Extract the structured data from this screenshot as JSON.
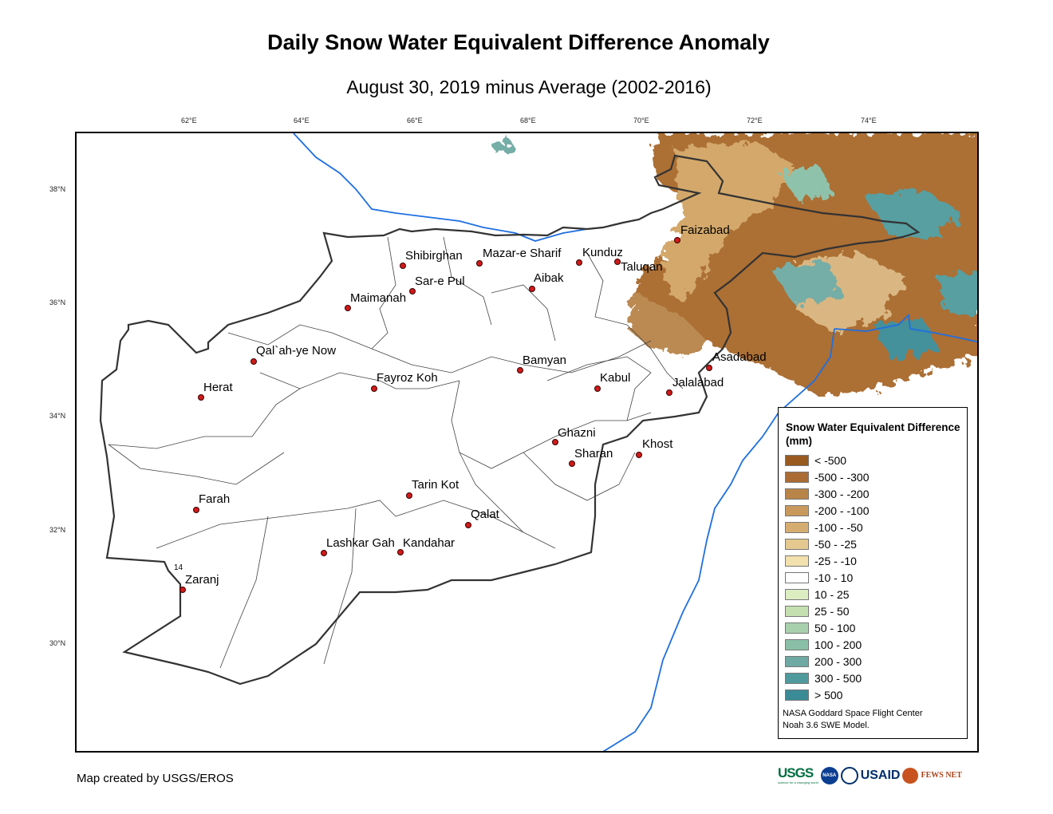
{
  "title": "Daily Snow Water Equivalent Difference Anomaly",
  "subtitle": "August 30, 2019 minus Average (2002-2016)",
  "axes": {
    "longitude_ticks": [
      "62°E",
      "64°E",
      "66°E",
      "68°E",
      "70°E",
      "72°E",
      "74°E"
    ],
    "latitude_ticks": [
      "38°N",
      "36°N",
      "34°N",
      "32°N",
      "30°N"
    ]
  },
  "cities": [
    {
      "name": "Faizabad"
    },
    {
      "name": "Shibirghan"
    },
    {
      "name": "Mazar-e Sharif"
    },
    {
      "name": "Kunduz"
    },
    {
      "name": "Taluqan"
    },
    {
      "name": "Sar-e Pul"
    },
    {
      "name": "Aibak"
    },
    {
      "name": "Maimanah"
    },
    {
      "name": "Qal`ah-ye Now"
    },
    {
      "name": "Asadabad"
    },
    {
      "name": "Bamyan"
    },
    {
      "name": "Fayroz Koh"
    },
    {
      "name": "Kabul"
    },
    {
      "name": "Jalalabad"
    },
    {
      "name": "Herat"
    },
    {
      "name": "Ghazni"
    },
    {
      "name": "Khost"
    },
    {
      "name": "Sharan"
    },
    {
      "name": "Farah"
    },
    {
      "name": "Tarin Kot"
    },
    {
      "name": "Qalat"
    },
    {
      "name": "Lashkar Gah"
    },
    {
      "name": "Kandahar"
    },
    {
      "name": "Zaranj"
    }
  ],
  "map_annotation": "14",
  "legend": {
    "title": "Snow Water Equivalent Difference (mm)",
    "items": [
      {
        "label": "< -500",
        "color": "#995a1f"
      },
      {
        "label": "-500 - -300",
        "color": "#aa6c33"
      },
      {
        "label": "-300 - -200",
        "color": "#b88448"
      },
      {
        "label": "-200 - -100",
        "color": "#c9985c"
      },
      {
        "label": "-100 - -50",
        "color": "#d6ad70"
      },
      {
        "label": "-50 - -25",
        "color": "#e5c88f"
      },
      {
        "label": "-25 - -10",
        "color": "#f2e1ad"
      },
      {
        "label": "-10 - 10",
        "color": "#ffffff"
      },
      {
        "label": "10 - 25",
        "color": "#dcedc2"
      },
      {
        "label": "25 - 50",
        "color": "#c4e0b0"
      },
      {
        "label": "50 - 100",
        "color": "#a8d0ac"
      },
      {
        "label": "100 - 200",
        "color": "#8abfa7"
      },
      {
        "label": "200 - 300",
        "color": "#6ea9a3"
      },
      {
        "label": "300 - 500",
        "color": "#4f9a9c"
      },
      {
        "label": "> 500",
        "color": "#3a8b96"
      }
    ],
    "credit_line1": "NASA Goddard Space Flight Center",
    "credit_line2": "Noah 3.6 SWE Model."
  },
  "footer": "Map created by USGS/EROS",
  "logos": {
    "usgs": "USGS",
    "usgs_tagline": "science for a changing world",
    "nasa": "NASA",
    "usaid": "USAID",
    "fews": "FEWS NET"
  }
}
